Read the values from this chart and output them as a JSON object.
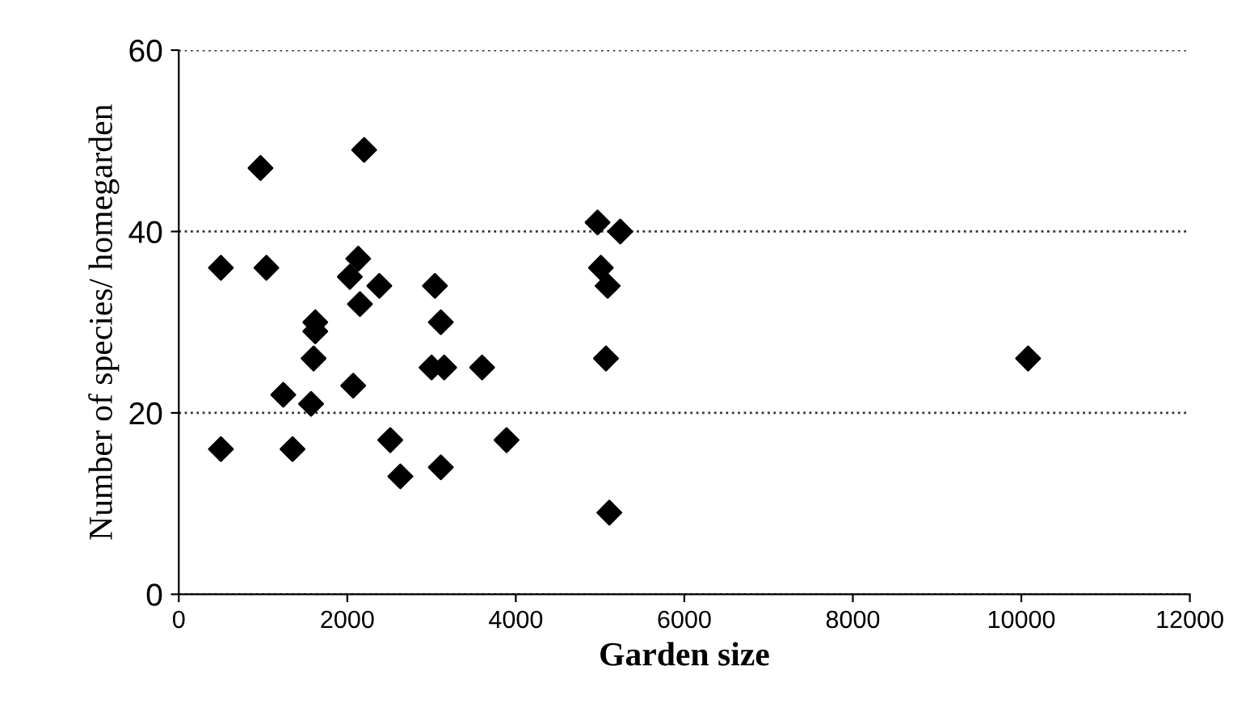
{
  "chart_data": {
    "type": "scatter",
    "xlabel": "Garden size",
    "ylabel": "Number of species/ homegarden",
    "x": [
      500,
      500,
      970,
      1040,
      1240,
      1350,
      1570,
      1600,
      1620,
      1620,
      2070,
      2030,
      2130,
      2150,
      2200,
      2380,
      2510,
      2630,
      3040,
      3110,
      3000,
      3150,
      3110,
      3600,
      3890,
      4970,
      5240,
      5010,
      5090,
      5070,
      5110,
      10080
    ],
    "series": [
      {
        "color": "#000000",
        "values": [
          16,
          36,
          47,
          36,
          22,
          16,
          21,
          26,
          29,
          30,
          23,
          35,
          37,
          32,
          49,
          34,
          17,
          13,
          34,
          30,
          25,
          25,
          14,
          25,
          17,
          41,
          40,
          36,
          34,
          26,
          9,
          26
        ]
      }
    ],
    "marker": "diamond",
    "grid": "y",
    "xlim": [
      0,
      12000
    ],
    "ylim": [
      0,
      60
    ],
    "xticks": [
      0,
      2000,
      4000,
      6000,
      8000,
      10000,
      12000
    ],
    "yticks": [
      0,
      20,
      40,
      60
    ]
  }
}
